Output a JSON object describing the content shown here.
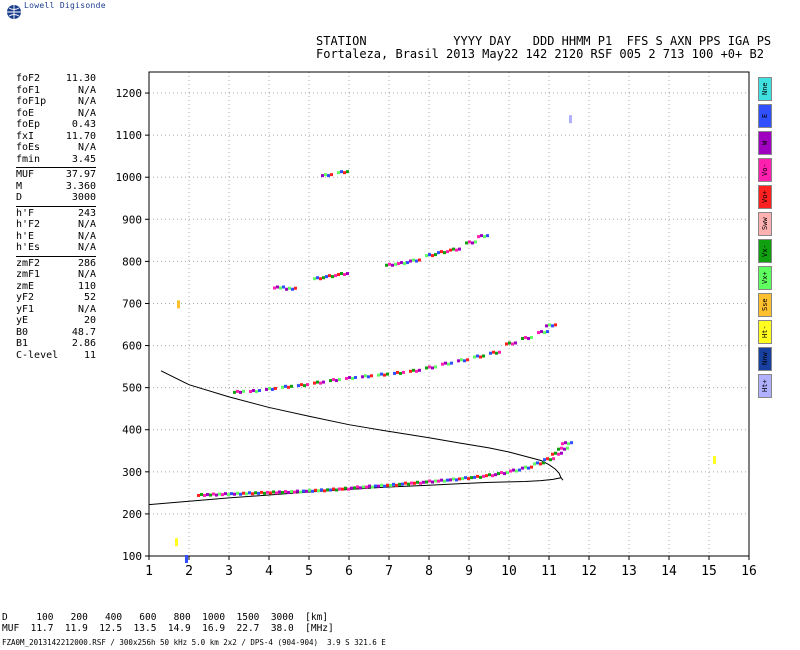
{
  "logo_text": "Lowell Digisonde",
  "header": {
    "line1": "STATION            YYYY DAY   DDD HHMM P1  FFS S AXN PPS IGA PS",
    "line2": "Fortaleza, Brasil 2013 May22 142 2120 RSF 005 2 713 100 +0+ B2"
  },
  "params": [
    [
      [
        "foF2",
        "11.30"
      ],
      [
        "foF1",
        "N/A"
      ],
      [
        "foF1p",
        "N/A"
      ],
      [
        "foE",
        "N/A"
      ],
      [
        "foEp",
        "0.43"
      ],
      [
        "fxI",
        "11.70"
      ],
      [
        "foEs",
        "N/A"
      ],
      [
        "fmin",
        "3.45"
      ]
    ],
    [
      [
        "MUF",
        "37.97"
      ],
      [
        "M",
        "3.360"
      ],
      [
        "D",
        "3000"
      ]
    ],
    [
      [
        "h'F",
        "243"
      ],
      [
        "h'F2",
        "N/A"
      ],
      [
        "h'E",
        "N/A"
      ],
      [
        "h'Es",
        "N/A"
      ]
    ],
    [
      [
        "zmF2",
        "286"
      ],
      [
        "zmF1",
        "N/A"
      ],
      [
        "zmE",
        "110"
      ],
      [
        "yF2",
        "52"
      ],
      [
        "yF1",
        "N/A"
      ],
      [
        "yE",
        "20"
      ],
      [
        "B0",
        "48.7"
      ],
      [
        "B1",
        "2.86"
      ],
      [
        "C-level",
        "11"
      ]
    ]
  ],
  "legend": [
    {
      "label": "Nne",
      "color": "#40e0e0"
    },
    {
      "label": "E",
      "color": "#3050ff"
    },
    {
      "label": "W",
      "color": "#a000c0"
    },
    {
      "label": "Vo-",
      "color": "#ff20b0"
    },
    {
      "label": "Vo+",
      "color": "#ff2020"
    },
    {
      "label": "Sww",
      "color": "#ffb0b0"
    },
    {
      "label": "Vx-",
      "color": "#10a010"
    },
    {
      "label": "Vx+",
      "color": "#60ff60"
    },
    {
      "label": "Sse",
      "color": "#ffc030"
    },
    {
      "label": "Ht-",
      "color": "#ffff20"
    },
    {
      "label": "Nnw",
      "color": "#1840a0"
    },
    {
      "label": "Ht+",
      "color": "#b0b0ff"
    }
  ],
  "footer": {
    "line1": "D     100   200   400   600   800  1000  1500  3000  [km]",
    "line2": "MUF  11.7  11.9  12.5  13.5  14.9  16.9  22.7  38.0  [MHz]"
  },
  "filename": "FZA0M_2013142212000.RSF / 300x256h 50 kHz 5.0 km 2x2 / DPS-4 (904-904)  3.9 S 321.6 E",
  "chart_data": {
    "type": "scatter",
    "xlim": [
      1,
      16
    ],
    "ylim": [
      100,
      1250
    ],
    "xticks": [
      1,
      2,
      3,
      4,
      5,
      6,
      7,
      8,
      9,
      10,
      11,
      12,
      13,
      14,
      15,
      16
    ],
    "yticks": [
      100,
      200,
      300,
      400,
      500,
      600,
      700,
      800,
      900,
      1000,
      1100,
      1200
    ],
    "grid": true,
    "profile": {
      "x": [
        1.3,
        2.0,
        3.0,
        4.0,
        5.0,
        6.0,
        7.0,
        8.0,
        8.8,
        9.5,
        10.0,
        10.4,
        10.8,
        11.0,
        11.15,
        11.25,
        11.3
      ],
      "y": [
        540,
        507,
        478,
        453,
        432,
        412,
        396,
        381,
        368,
        357,
        347,
        337,
        327,
        317,
        307,
        297,
        286
      ]
    },
    "trace_lower": {
      "x": [
        1.0,
        2.0,
        3.0,
        4.0,
        5.0,
        6.0,
        7.0,
        8.0,
        8.8,
        9.5,
        10.0,
        10.4,
        10.8,
        11.1,
        11.3
      ],
      "y": [
        222,
        230,
        238,
        245,
        252,
        258,
        264,
        268,
        272,
        275,
        276,
        277,
        279,
        282,
        286
      ]
    },
    "echoes": [
      {
        "name": "F trace",
        "x": [
          2.3,
          2.6,
          2.9,
          3.2,
          3.5,
          3.8,
          4.1,
          4.4,
          4.7,
          5.0,
          5.3,
          5.6,
          5.9,
          6.2,
          6.5,
          6.8,
          7.1,
          7.4,
          7.7,
          8.0,
          8.3,
          8.6,
          8.9,
          9.2,
          9.5,
          9.8,
          10.1,
          10.4,
          10.7,
          10.95,
          11.15,
          11.3,
          11.4
        ],
        "y": [
          245,
          246,
          247,
          248,
          249,
          250,
          251,
          252,
          253,
          255,
          256,
          258,
          260,
          263,
          265,
          267,
          269,
          272,
          274,
          277,
          279,
          282,
          285,
          288,
          292,
          297,
          303,
          310,
          320,
          330,
          343,
          355,
          368
        ]
      },
      {
        "name": "2F trace",
        "x": [
          3.2,
          3.6,
          4.0,
          4.4,
          4.8,
          5.2,
          5.6,
          6.0,
          6.4,
          6.8,
          7.2,
          7.6,
          8.0,
          8.4,
          8.8,
          9.2,
          9.6,
          10.0,
          10.4,
          10.8,
          11.0
        ],
        "y": [
          490,
          492,
          497,
          502,
          506,
          512,
          518,
          523,
          527,
          531,
          535,
          540,
          548,
          557,
          565,
          574,
          583,
          605,
          618,
          632,
          648
        ]
      },
      {
        "name": "3F trace",
        "x": [
          4.2,
          4.5,
          5.2,
          5.5,
          5.8,
          7.0,
          7.3,
          7.6,
          8.0,
          8.3,
          8.6,
          9.0,
          9.3
        ],
        "y": [
          738,
          735,
          760,
          765,
          770,
          792,
          796,
          802,
          815,
          822,
          828,
          845,
          860
        ]
      },
      {
        "name": "4F trace",
        "x": [
          5.4,
          5.8
        ],
        "y": [
          1005,
          1012
        ]
      },
      {
        "name": "stray",
        "x": [
          1.8,
          1.75,
          2.0,
          11.6,
          15.2
        ],
        "y": [
          705,
          140,
          100,
          1145,
          335
        ]
      }
    ]
  }
}
